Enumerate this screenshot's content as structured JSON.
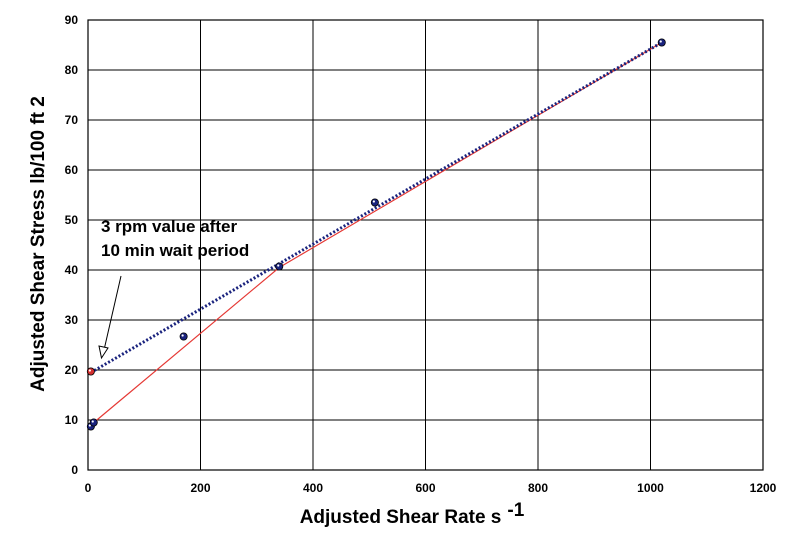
{
  "chart_data": {
    "type": "scatter",
    "title": "",
    "xlabel": "Adjusted Shear Rate s",
    "xlabel_superscript": "-1",
    "ylabel": "Adjusted Shear Stress lb/100 ft 2",
    "xlim": [
      0,
      1200
    ],
    "ylim": [
      0,
      90
    ],
    "xticks": [
      0,
      200,
      400,
      600,
      800,
      1000,
      1200
    ],
    "yticks": [
      0,
      10,
      20,
      30,
      40,
      50,
      60,
      70,
      80,
      90
    ],
    "grid": true,
    "legend": "none",
    "series": [
      {
        "marker": "circle",
        "color": "#1a237e",
        "x": [
          5.1,
          10.2,
          170,
          340,
          510,
          1020
        ],
        "y": [
          8.7,
          9.5,
          26.7,
          40.7,
          53.5,
          85.5
        ]
      },
      {
        "marker": "circle",
        "color": "#d32f2f",
        "x": [
          5.1
        ],
        "y": [
          19.7
        ]
      }
    ],
    "lines": [
      {
        "style": "solid",
        "color": "#e53935",
        "x": [
          5.1,
          340,
          1020
        ],
        "y": [
          9,
          40.5,
          85.5
        ]
      },
      {
        "style": "dotted",
        "color": "#1a237e",
        "x": [
          5.1,
          1020
        ],
        "y": [
          19.5,
          85.5
        ]
      }
    ],
    "annotation": {
      "lines": [
        "3 rpm value after",
        "10 min wait period"
      ],
      "arrow_to": {
        "x": 5.1,
        "y": 19.7
      }
    }
  }
}
